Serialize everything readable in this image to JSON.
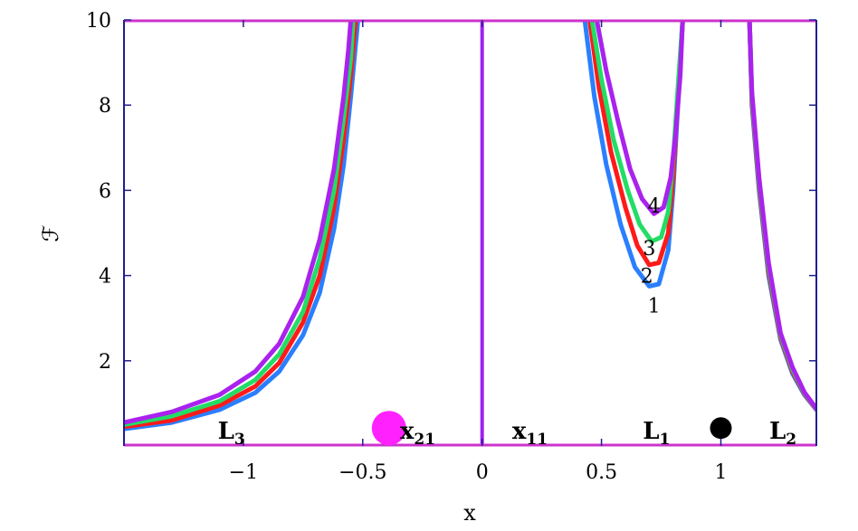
{
  "chart_data": {
    "type": "line",
    "xlabel": "x",
    "ylabel": "ℱ",
    "xlim": [
      -1.5,
      1.4
    ],
    "ylim": [
      0,
      10
    ],
    "x_ticks": [
      {
        "value": -1,
        "label": "−1"
      },
      {
        "value": -0.5,
        "label": "−0.5"
      },
      {
        "value": 0,
        "label": "0"
      },
      {
        "value": 0.5,
        "label": "0.5"
      },
      {
        "value": 1,
        "label": "1"
      }
    ],
    "y_ticks": [
      {
        "value": 2,
        "label": "2"
      },
      {
        "value": 4,
        "label": "4"
      },
      {
        "value": 6,
        "label": "6"
      },
      {
        "value": 8,
        "label": "8"
      },
      {
        "value": 10,
        "label": "10"
      }
    ],
    "grid": false,
    "colors": {
      "frame": "#1f1f8f",
      "ceiling": "#cc33cc",
      "asymptote": "#a020f0"
    },
    "vertical_lines": [
      {
        "x": 0
      }
    ],
    "series": [
      {
        "color": "#2a7fff",
        "label": "1",
        "label_point": [
          0.72,
          3.3
        ],
        "segments": [
          [
            [
              -1.5,
              0.4
            ],
            [
              -1.3,
              0.55
            ],
            [
              -1.1,
              0.85
            ],
            [
              -0.95,
              1.25
            ],
            [
              -0.85,
              1.75
            ],
            [
              -0.75,
              2.6
            ],
            [
              -0.68,
              3.6
            ],
            [
              -0.62,
              5.1
            ],
            [
              -0.58,
              6.6
            ],
            [
              -0.55,
              8.2
            ],
            [
              -0.52,
              10
            ]
          ],
          [
            [
              0.43,
              10
            ],
            [
              0.47,
              8.2
            ],
            [
              0.52,
              6.6
            ],
            [
              0.58,
              5.2
            ],
            [
              0.64,
              4.2
            ],
            [
              0.7,
              3.75
            ],
            [
              0.74,
              3.8
            ],
            [
              0.78,
              4.6
            ],
            [
              0.8,
              6.0
            ],
            [
              0.82,
              8.0
            ],
            [
              0.84,
              10
            ]
          ],
          [
            [
              1.12,
              10
            ],
            [
              1.13,
              8.0
            ],
            [
              1.16,
              6.0
            ],
            [
              1.2,
              4.0
            ],
            [
              1.25,
              2.5
            ],
            [
              1.3,
              1.7
            ],
            [
              1.35,
              1.2
            ],
            [
              1.4,
              0.85
            ]
          ]
        ]
      },
      {
        "color": "#ff1a1a",
        "label": "2",
        "label_point": [
          0.69,
          4.0
        ],
        "segments": [
          [
            [
              -1.5,
              0.45
            ],
            [
              -1.3,
              0.6
            ],
            [
              -1.1,
              0.95
            ],
            [
              -0.95,
              1.4
            ],
            [
              -0.85,
              1.95
            ],
            [
              -0.75,
              2.9
            ],
            [
              -0.68,
              4.0
            ],
            [
              -0.62,
              5.6
            ],
            [
              -0.58,
              7.2
            ],
            [
              -0.55,
              8.7
            ],
            [
              -0.53,
              10
            ]
          ],
          [
            [
              0.45,
              10
            ],
            [
              0.49,
              8.4
            ],
            [
              0.54,
              6.9
            ],
            [
              0.6,
              5.6
            ],
            [
              0.65,
              4.7
            ],
            [
              0.7,
              4.25
            ],
            [
              0.74,
              4.3
            ],
            [
              0.78,
              5.0
            ],
            [
              0.8,
              6.3
            ],
            [
              0.82,
              8.2
            ],
            [
              0.84,
              10
            ]
          ],
          [
            [
              1.12,
              10
            ],
            [
              1.13,
              8.1
            ],
            [
              1.16,
              6.1
            ],
            [
              1.2,
              4.1
            ],
            [
              1.25,
              2.55
            ],
            [
              1.3,
              1.75
            ],
            [
              1.35,
              1.22
            ],
            [
              1.4,
              0.86
            ]
          ]
        ]
      },
      {
        "color": "#22dd66",
        "label": "3",
        "label_point": [
          0.7,
          4.65
        ],
        "segments": [
          [
            [
              -1.5,
              0.5
            ],
            [
              -1.3,
              0.7
            ],
            [
              -1.1,
              1.05
            ],
            [
              -0.95,
              1.55
            ],
            [
              -0.85,
              2.15
            ],
            [
              -0.75,
              3.15
            ],
            [
              -0.68,
              4.4
            ],
            [
              -0.62,
              6.0
            ],
            [
              -0.58,
              7.7
            ],
            [
              -0.55,
              9.1
            ],
            [
              -0.54,
              10
            ]
          ],
          [
            [
              0.46,
              10
            ],
            [
              0.5,
              8.6
            ],
            [
              0.55,
              7.2
            ],
            [
              0.61,
              6.0
            ],
            [
              0.66,
              5.2
            ],
            [
              0.71,
              4.8
            ],
            [
              0.75,
              4.9
            ],
            [
              0.78,
              5.5
            ],
            [
              0.8,
              6.7
            ],
            [
              0.82,
              8.4
            ],
            [
              0.84,
              10
            ]
          ],
          [
            [
              1.12,
              10
            ],
            [
              1.13,
              8.2
            ],
            [
              1.16,
              6.2
            ],
            [
              1.2,
              4.2
            ],
            [
              1.25,
              2.6
            ],
            [
              1.3,
              1.8
            ],
            [
              1.35,
              1.24
            ],
            [
              1.4,
              0.87
            ]
          ]
        ]
      },
      {
        "color": "#aa22ee",
        "label": "4",
        "label_point": [
          0.72,
          5.65
        ],
        "segments": [
          [
            [
              -1.5,
              0.55
            ],
            [
              -1.3,
              0.8
            ],
            [
              -1.1,
              1.2
            ],
            [
              -0.95,
              1.75
            ],
            [
              -0.85,
              2.4
            ],
            [
              -0.75,
              3.5
            ],
            [
              -0.68,
              4.85
            ],
            [
              -0.62,
              6.5
            ],
            [
              -0.58,
              8.2
            ],
            [
              -0.56,
              9.3
            ],
            [
              -0.55,
              10
            ]
          ],
          [
            [
              0.48,
              10
            ],
            [
              0.52,
              8.8
            ],
            [
              0.57,
              7.6
            ],
            [
              0.62,
              6.5
            ],
            [
              0.67,
              5.8
            ],
            [
              0.72,
              5.45
            ],
            [
              0.76,
              5.6
            ],
            [
              0.79,
              6.3
            ],
            [
              0.81,
              7.3
            ],
            [
              0.83,
              8.7
            ],
            [
              0.84,
              10
            ]
          ],
          [
            [
              1.12,
              10
            ],
            [
              1.13,
              8.3
            ],
            [
              1.16,
              6.3
            ],
            [
              1.2,
              4.3
            ],
            [
              1.25,
              2.65
            ],
            [
              1.3,
              1.85
            ],
            [
              1.35,
              1.26
            ],
            [
              1.4,
              0.88
            ]
          ]
        ]
      }
    ],
    "markers": [
      {
        "x": -0.39,
        "y": 0.25,
        "color": "#ff22ff",
        "size": "large"
      },
      {
        "x": 1.0,
        "y": 0.25,
        "color": "#000000",
        "size": "small"
      }
    ],
    "point_labels": [
      {
        "text": "L",
        "sub": "3",
        "x": -1.05,
        "y": 0.25
      },
      {
        "text": "x",
        "sub": "21",
        "x": -0.27,
        "y": 0.25
      },
      {
        "text": "x",
        "sub": "11",
        "x": 0.2,
        "y": 0.25
      },
      {
        "text": "L",
        "sub": "1",
        "x": 0.73,
        "y": 0.25
      },
      {
        "text": "L",
        "sub": "2",
        "x": 1.26,
        "y": 0.25
      }
    ]
  }
}
